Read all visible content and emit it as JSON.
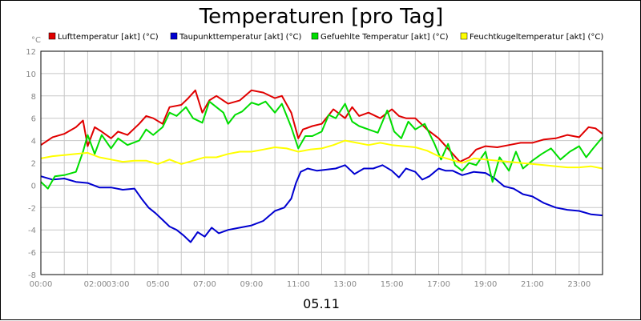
{
  "chart_data": {
    "type": "line",
    "title": "Temperaturen [pro Tag]",
    "y_unit_label": "°C",
    "date_label": "05.11",
    "x_range_hours": [
      0,
      24
    ],
    "ylim": [
      -8,
      12
    ],
    "y_ticks": [
      12,
      10,
      8,
      6,
      4,
      2,
      0,
      -2,
      -4,
      -6,
      -8
    ],
    "x_ticks": [
      {
        "label": "00:00",
        "h": 0
      },
      {
        "label": "02:00",
        "h": 2
      },
      {
        "label": "03:00",
        "h": 3
      },
      {
        "label": "05:00",
        "h": 5
      },
      {
        "label": "07:00",
        "h": 7
      },
      {
        "label": "09:00",
        "h": 9
      },
      {
        "label": "11:00",
        "h": 11
      },
      {
        "label": "13:00",
        "h": 13
      },
      {
        "label": "15:00",
        "h": 15
      },
      {
        "label": "17:00",
        "h": 17
      },
      {
        "label": "19:00",
        "h": 19
      },
      {
        "label": "21:00",
        "h": 21
      },
      {
        "label": "23:00",
        "h": 23
      }
    ],
    "grid": true,
    "legend_position": "top",
    "series": [
      {
        "name": "Lufttemperatur [akt] (°C)",
        "color": "#e00000",
        "points": [
          [
            0,
            3.6
          ],
          [
            0.5,
            4.3
          ],
          [
            1,
            4.6
          ],
          [
            1.5,
            5.2
          ],
          [
            1.8,
            5.8
          ],
          [
            2,
            3.5
          ],
          [
            2.3,
            5.2
          ],
          [
            2.6,
            4.8
          ],
          [
            3,
            4.2
          ],
          [
            3.3,
            4.8
          ],
          [
            3.7,
            4.5
          ],
          [
            4.2,
            5.5
          ],
          [
            4.5,
            6.2
          ],
          [
            4.8,
            6.0
          ],
          [
            5.2,
            5.5
          ],
          [
            5.5,
            7.0
          ],
          [
            6,
            7.2
          ],
          [
            6.3,
            7.8
          ],
          [
            6.6,
            8.5
          ],
          [
            6.9,
            6.5
          ],
          [
            7.2,
            7.6
          ],
          [
            7.5,
            8.0
          ],
          [
            8,
            7.3
          ],
          [
            8.5,
            7.6
          ],
          [
            9,
            8.5
          ],
          [
            9.5,
            8.3
          ],
          [
            10,
            7.8
          ],
          [
            10.3,
            8.0
          ],
          [
            10.7,
            6.5
          ],
          [
            11,
            4.2
          ],
          [
            11.2,
            5.0
          ],
          [
            11.6,
            5.3
          ],
          [
            12,
            5.5
          ],
          [
            12.5,
            6.8
          ],
          [
            13,
            6.0
          ],
          [
            13.3,
            7.0
          ],
          [
            13.6,
            6.2
          ],
          [
            14,
            6.5
          ],
          [
            14.5,
            6.0
          ],
          [
            15,
            6.8
          ],
          [
            15.3,
            6.2
          ],
          [
            15.6,
            6.0
          ],
          [
            16,
            6.0
          ],
          [
            16.5,
            5.0
          ],
          [
            17,
            4.2
          ],
          [
            17.3,
            3.5
          ],
          [
            17.6,
            2.8
          ],
          [
            17.9,
            2.1
          ],
          [
            18.3,
            2.5
          ],
          [
            18.6,
            3.2
          ],
          [
            19,
            3.5
          ],
          [
            19.5,
            3.4
          ],
          [
            20,
            3.6
          ],
          [
            20.5,
            3.8
          ],
          [
            21,
            3.8
          ],
          [
            21.5,
            4.1
          ],
          [
            22,
            4.2
          ],
          [
            22.5,
            4.5
          ],
          [
            23,
            4.3
          ],
          [
            23.4,
            5.2
          ],
          [
            23.7,
            5.1
          ],
          [
            24,
            4.6
          ]
        ]
      },
      {
        "name": "Taupunkttemperatur [akt] (°C)",
        "color": "#0000d0",
        "points": [
          [
            0,
            0.8
          ],
          [
            0.5,
            0.5
          ],
          [
            1,
            0.6
          ],
          [
            1.5,
            0.3
          ],
          [
            2,
            0.2
          ],
          [
            2.5,
            -0.2
          ],
          [
            3,
            -0.2
          ],
          [
            3.5,
            -0.4
          ],
          [
            4,
            -0.3
          ],
          [
            4.3,
            -1.2
          ],
          [
            4.6,
            -2.0
          ],
          [
            4.9,
            -2.5
          ],
          [
            5.2,
            -3.1
          ],
          [
            5.5,
            -3.7
          ],
          [
            5.8,
            -4.0
          ],
          [
            6.1,
            -4.5
          ],
          [
            6.4,
            -5.1
          ],
          [
            6.7,
            -4.2
          ],
          [
            7,
            -4.6
          ],
          [
            7.3,
            -3.8
          ],
          [
            7.6,
            -4.3
          ],
          [
            8,
            -4.0
          ],
          [
            8.5,
            -3.8
          ],
          [
            9,
            -3.6
          ],
          [
            9.5,
            -3.2
          ],
          [
            10,
            -2.3
          ],
          [
            10.4,
            -2.0
          ],
          [
            10.7,
            -1.2
          ],
          [
            10.9,
            0.2
          ],
          [
            11.1,
            1.2
          ],
          [
            11.4,
            1.5
          ],
          [
            11.8,
            1.3
          ],
          [
            12.2,
            1.4
          ],
          [
            12.6,
            1.5
          ],
          [
            13,
            1.8
          ],
          [
            13.4,
            1.0
          ],
          [
            13.8,
            1.5
          ],
          [
            14.2,
            1.5
          ],
          [
            14.6,
            1.8
          ],
          [
            15,
            1.3
          ],
          [
            15.3,
            0.7
          ],
          [
            15.6,
            1.5
          ],
          [
            16,
            1.2
          ],
          [
            16.3,
            0.5
          ],
          [
            16.6,
            0.8
          ],
          [
            17,
            1.5
          ],
          [
            17.3,
            1.3
          ],
          [
            17.6,
            1.3
          ],
          [
            18,
            0.9
          ],
          [
            18.5,
            1.2
          ],
          [
            19,
            1.1
          ],
          [
            19.4,
            0.6
          ],
          [
            19.8,
            -0.1
          ],
          [
            20.2,
            -0.3
          ],
          [
            20.6,
            -0.8
          ],
          [
            21,
            -1.0
          ],
          [
            21.5,
            -1.6
          ],
          [
            22,
            -2.0
          ],
          [
            22.5,
            -2.2
          ],
          [
            23,
            -2.3
          ],
          [
            23.5,
            -2.6
          ],
          [
            24,
            -2.7
          ]
        ]
      },
      {
        "name": "Gefuehlte Temperatur [akt] (°C)",
        "color": "#00dd00",
        "points": [
          [
            0,
            0.3
          ],
          [
            0.3,
            -0.3
          ],
          [
            0.6,
            0.8
          ],
          [
            1,
            0.9
          ],
          [
            1.5,
            1.2
          ],
          [
            1.8,
            3.0
          ],
          [
            2,
            4.5
          ],
          [
            2.3,
            2.8
          ],
          [
            2.6,
            4.5
          ],
          [
            3,
            3.3
          ],
          [
            3.3,
            4.2
          ],
          [
            3.7,
            3.6
          ],
          [
            4.2,
            4.0
          ],
          [
            4.5,
            5.0
          ],
          [
            4.8,
            4.5
          ],
          [
            5.2,
            5.2
          ],
          [
            5.5,
            6.5
          ],
          [
            5.8,
            6.2
          ],
          [
            6.2,
            7.0
          ],
          [
            6.5,
            6.0
          ],
          [
            6.9,
            5.6
          ],
          [
            7.2,
            7.5
          ],
          [
            7.5,
            7.0
          ],
          [
            7.8,
            6.5
          ],
          [
            8,
            5.5
          ],
          [
            8.3,
            6.3
          ],
          [
            8.6,
            6.6
          ],
          [
            9,
            7.4
          ],
          [
            9.3,
            7.2
          ],
          [
            9.6,
            7.5
          ],
          [
            10,
            6.5
          ],
          [
            10.3,
            7.3
          ],
          [
            10.7,
            5.2
          ],
          [
            11,
            3.3
          ],
          [
            11.3,
            4.4
          ],
          [
            11.6,
            4.4
          ],
          [
            12,
            4.8
          ],
          [
            12.3,
            6.3
          ],
          [
            12.6,
            6.0
          ],
          [
            13,
            7.3
          ],
          [
            13.3,
            5.7
          ],
          [
            13.6,
            5.3
          ],
          [
            14,
            5.0
          ],
          [
            14.4,
            4.7
          ],
          [
            14.8,
            6.7
          ],
          [
            15.1,
            4.8
          ],
          [
            15.4,
            4.2
          ],
          [
            15.7,
            5.7
          ],
          [
            16,
            5.0
          ],
          [
            16.4,
            5.5
          ],
          [
            16.8,
            3.8
          ],
          [
            17.1,
            2.3
          ],
          [
            17.4,
            3.7
          ],
          [
            17.7,
            1.8
          ],
          [
            18,
            1.3
          ],
          [
            18.3,
            2.0
          ],
          [
            18.6,
            1.8
          ],
          [
            19,
            3.0
          ],
          [
            19.3,
            0.3
          ],
          [
            19.6,
            2.5
          ],
          [
            20,
            1.3
          ],
          [
            20.3,
            3.0
          ],
          [
            20.6,
            1.5
          ],
          [
            21,
            2.2
          ],
          [
            21.4,
            2.8
          ],
          [
            21.8,
            3.3
          ],
          [
            22.2,
            2.3
          ],
          [
            22.6,
            3.0
          ],
          [
            23,
            3.5
          ],
          [
            23.3,
            2.5
          ],
          [
            23.6,
            3.3
          ],
          [
            24,
            4.3
          ]
        ]
      },
      {
        "name": "Feuchtkugeltemperatur [akt] (°C)",
        "color": "#ffff00",
        "points": [
          [
            0,
            2.4
          ],
          [
            0.5,
            2.6
          ],
          [
            1,
            2.7
          ],
          [
            1.5,
            2.8
          ],
          [
            2,
            2.9
          ],
          [
            2.5,
            2.5
          ],
          [
            3,
            2.3
          ],
          [
            3.5,
            2.1
          ],
          [
            4,
            2.2
          ],
          [
            4.5,
            2.2
          ],
          [
            5,
            1.9
          ],
          [
            5.5,
            2.3
          ],
          [
            6,
            1.9
          ],
          [
            6.5,
            2.2
          ],
          [
            7,
            2.5
          ],
          [
            7.5,
            2.5
          ],
          [
            8,
            2.8
          ],
          [
            8.5,
            3.0
          ],
          [
            9,
            3.0
          ],
          [
            9.5,
            3.2
          ],
          [
            10,
            3.4
          ],
          [
            10.5,
            3.3
          ],
          [
            11,
            3.0
          ],
          [
            11.5,
            3.2
          ],
          [
            12,
            3.3
          ],
          [
            12.5,
            3.6
          ],
          [
            13,
            4.0
          ],
          [
            13.5,
            3.8
          ],
          [
            14,
            3.6
          ],
          [
            14.5,
            3.8
          ],
          [
            15,
            3.6
          ],
          [
            15.5,
            3.5
          ],
          [
            16,
            3.4
          ],
          [
            16.5,
            3.1
          ],
          [
            17,
            2.6
          ],
          [
            17.5,
            2.3
          ],
          [
            18,
            2.0
          ],
          [
            18.5,
            2.4
          ],
          [
            19,
            2.3
          ],
          [
            19.5,
            2.2
          ],
          [
            20,
            2.1
          ],
          [
            20.5,
            2.0
          ],
          [
            21,
            1.9
          ],
          [
            21.5,
            1.8
          ],
          [
            22,
            1.7
          ],
          [
            22.5,
            1.6
          ],
          [
            23,
            1.6
          ],
          [
            23.5,
            1.7
          ],
          [
            24,
            1.5
          ]
        ]
      }
    ]
  }
}
